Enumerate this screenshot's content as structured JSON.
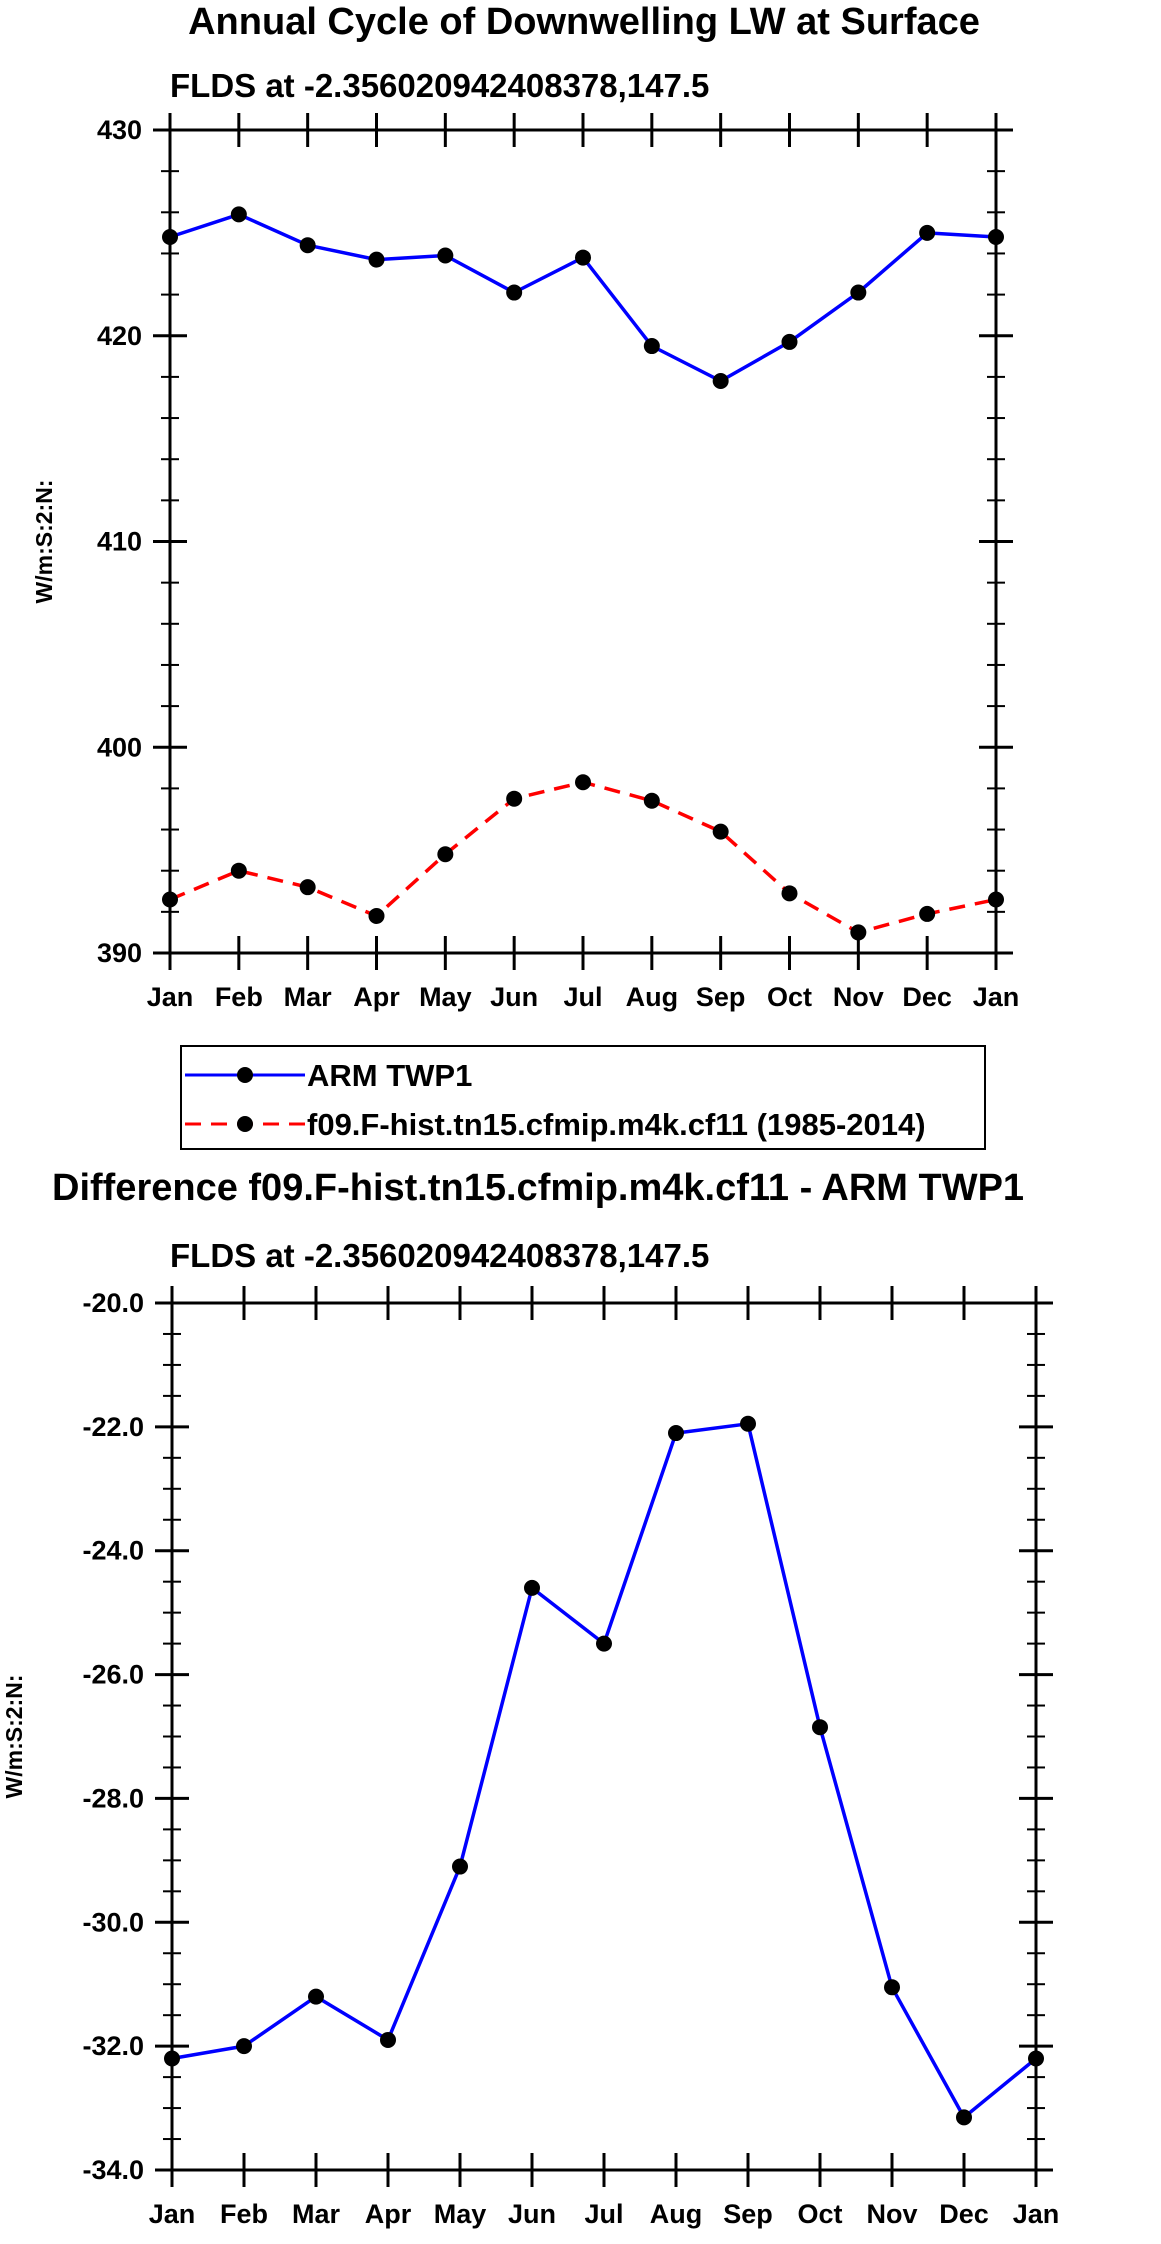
{
  "chart_data": [
    {
      "type": "line",
      "title": "Annual Cycle of Downwelling LW at Surface",
      "subtitle": "FLDS at -2.356020942408378,147.5",
      "xlabel": "",
      "ylabel": "W/m:S:2:N:",
      "categories": [
        "Jan",
        "Feb",
        "Mar",
        "Apr",
        "May",
        "Jun",
        "Jul",
        "Aug",
        "Sep",
        "Oct",
        "Nov",
        "Dec",
        "Jan"
      ],
      "ylim": [
        390,
        430
      ],
      "yticks": [
        390,
        400,
        410,
        420,
        430
      ],
      "ytick_labels": [
        "390",
        "400",
        "410",
        "420",
        "430"
      ],
      "grid": false,
      "series": [
        {
          "name": "ARM TWP1",
          "color": "#0000ff",
          "dash": "solid",
          "values": [
            424.8,
            425.9,
            424.4,
            423.7,
            423.9,
            422.1,
            423.8,
            419.5,
            417.8,
            419.7,
            422.1,
            425.0,
            424.8
          ]
        },
        {
          "name": "f09.F-hist.tn15.cfmip.m4k.cf11 (1985-2014)",
          "color": "#ff0000",
          "dash": "dashed",
          "values": [
            392.6,
            394.0,
            393.2,
            391.8,
            394.8,
            397.5,
            398.3,
            397.4,
            395.9,
            392.9,
            391.0,
            391.9,
            392.6
          ]
        }
      ],
      "legend": {
        "placement": "bottom-left",
        "entries": [
          "ARM TWP1",
          "f09.F-hist.tn15.cfmip.m4k.cf11 (1985-2014)"
        ]
      }
    },
    {
      "type": "line",
      "title": "Difference f09.F-hist.tn15.cfmip.m4k.cf11 - ARM TWP1",
      "subtitle": "FLDS at -2.356020942408378,147.5",
      "xlabel": "",
      "ylabel": "W/m:S:2:N:",
      "categories": [
        "Jan",
        "Feb",
        "Mar",
        "Apr",
        "May",
        "Jun",
        "Jul",
        "Aug",
        "Sep",
        "Oct",
        "Nov",
        "Dec",
        "Jan"
      ],
      "ylim": [
        -34,
        -20
      ],
      "yticks": [
        -34,
        -32,
        -30,
        -28,
        -26,
        -24,
        -22,
        -20
      ],
      "ytick_labels": [
        "-34.0",
        "-32.0",
        "-30.0",
        "-28.0",
        "-26.0",
        "-24.0",
        "-22.0",
        "-20.0"
      ],
      "grid": false,
      "series": [
        {
          "name": "Difference",
          "color": "#0000ff",
          "dash": "solid",
          "values": [
            -32.2,
            -32.0,
            -31.2,
            -31.9,
            -29.1,
            -24.6,
            -25.5,
            -22.1,
            -21.95,
            -26.85,
            -31.05,
            -33.15,
            -32.2
          ]
        }
      ]
    }
  ]
}
